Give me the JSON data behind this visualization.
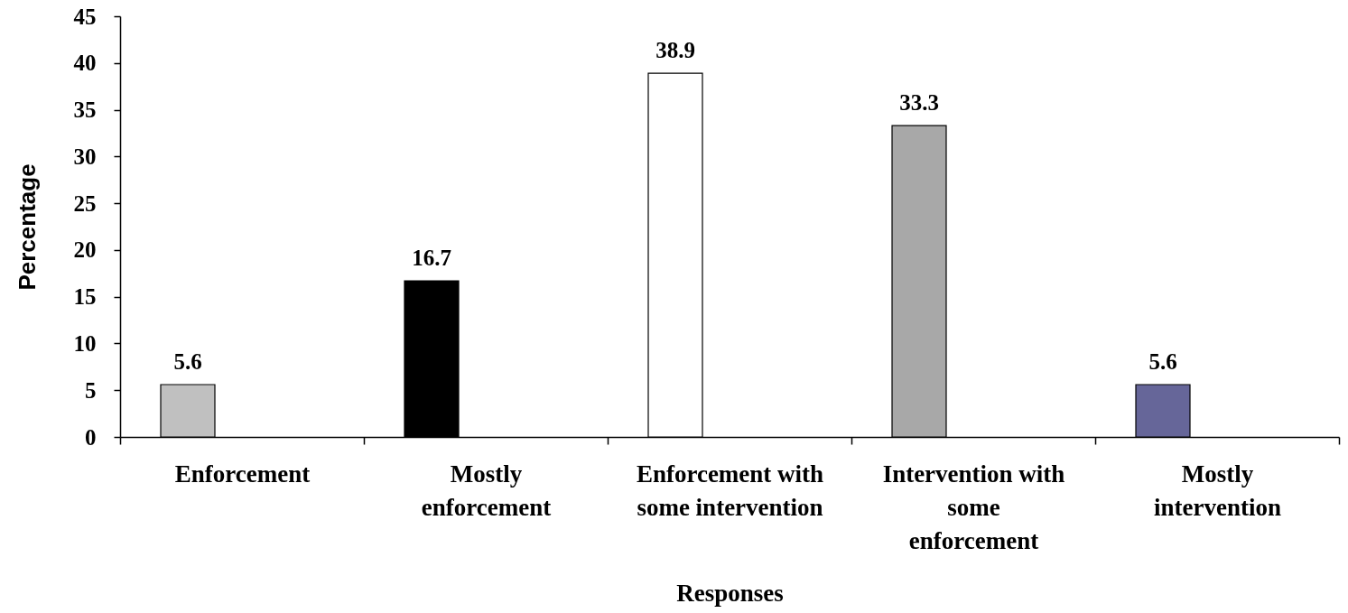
{
  "chart_data": {
    "type": "bar",
    "categories": [
      "Enforcement",
      "Mostly enforcement",
      "Enforcement with some intervention",
      "Intervention with some enforcement",
      "Mostly intervention"
    ],
    "values": [
      5.6,
      16.7,
      38.9,
      33.3,
      5.6
    ],
    "colors": [
      "#c0c0c0",
      "#000000",
      "#ffffff",
      "#a8a8a8",
      "#666699"
    ],
    "xlabel": "Responses",
    "ylabel": "Percentage",
    "ylim": [
      0,
      45
    ],
    "yticks": [
      0,
      5,
      10,
      15,
      20,
      25,
      30,
      35,
      40,
      45
    ],
    "data_labels": true,
    "grid": false
  }
}
